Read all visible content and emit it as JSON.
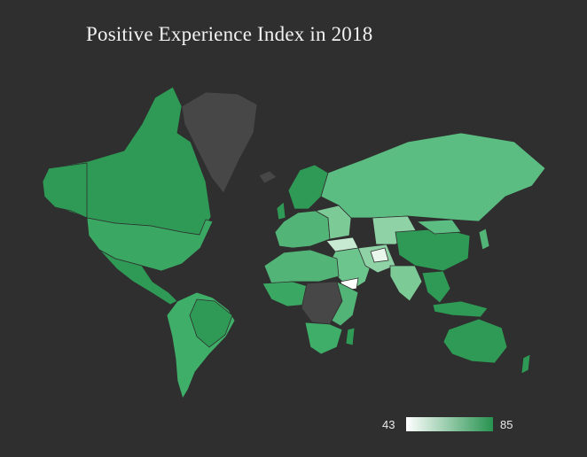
{
  "title": "Positive Experience Index in 2018",
  "legend": {
    "min": "43",
    "max": "85",
    "min_color": "#ffffff",
    "max_color": "#27934f"
  },
  "colors": {
    "background": "#2f2f2f",
    "no_data": "#474747",
    "land_high": "#2e9a55",
    "land_mid": "#52b477",
    "land_low": "#9fd6b0"
  }
}
